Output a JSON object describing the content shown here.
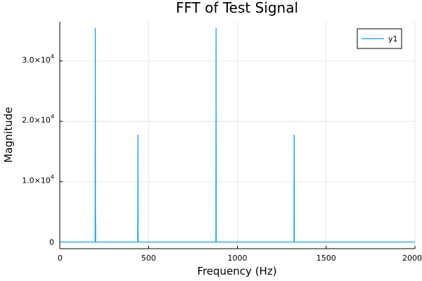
{
  "chart_data": {
    "type": "line",
    "title": "FFT of Test Signal",
    "xlabel": "Frequency (Hz)",
    "ylabel": "Magnitude",
    "xlim": [
      0,
      2000
    ],
    "ylim": [
      -1100,
      36500
    ],
    "grid": true,
    "legend_position": "top-right",
    "x_ticks": [
      {
        "value": 0,
        "label": "0"
      },
      {
        "value": 500,
        "label": "500"
      },
      {
        "value": 1000,
        "label": "1000"
      },
      {
        "value": 1500,
        "label": "1500"
      },
      {
        "value": 2000,
        "label": "2000"
      }
    ],
    "y_ticks": [
      {
        "value": 0,
        "label": "0"
      },
      {
        "value": 10000,
        "mantissa": "1.0×10",
        "exponent": "4"
      },
      {
        "value": 20000,
        "mantissa": "2.0×10",
        "exponent": "4"
      },
      {
        "value": 30000,
        "mantissa": "3.0×10",
        "exponent": "4"
      }
    ],
    "series": [
      {
        "name": "y1",
        "color": "#009af9",
        "points": [
          [
            0,
            0
          ],
          [
            199,
            0
          ],
          [
            200,
            35500
          ],
          [
            201,
            0
          ],
          [
            201.5,
            4500
          ],
          [
            202,
            0
          ],
          [
            439,
            0
          ],
          [
            440,
            17800
          ],
          [
            441,
            0
          ],
          [
            879,
            0
          ],
          [
            880,
            35500
          ],
          [
            881,
            0
          ],
          [
            1319,
            0
          ],
          [
            1320,
            17800
          ],
          [
            1321,
            0
          ],
          [
            2000,
            0
          ]
        ]
      }
    ]
  }
}
